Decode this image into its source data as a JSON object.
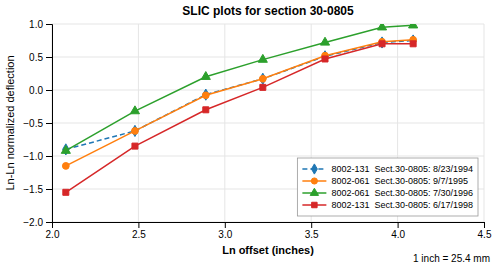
{
  "chart_data": {
    "type": "line",
    "title": "SLIC plots for section 30-0805",
    "x_label": "Ln offset (inches)",
    "y_label": "Ln-Ln normalized deflection",
    "annotations": [
      "1 inch = 25.4 mm"
    ],
    "x": [
      2.08,
      2.48,
      2.89,
      3.22,
      3.58,
      3.91,
      4.09
    ],
    "xlim": [
      2.0,
      4.5
    ],
    "ylim": [
      -2.0,
      1.0
    ],
    "xticks": [
      {
        "value": 2.0,
        "label": "2.0"
      },
      2.5,
      {
        "value": 3.0,
        "label": "3.0"
      },
      3.5,
      {
        "value": 4.0,
        "label": "4.0"
      },
      4.5
    ],
    "yticks": [
      {
        "value": -2.0,
        "label": "−2.0"
      },
      {
        "value": -1.5,
        "label": "−1.5"
      },
      {
        "value": -1.0,
        "label": "−1.0"
      },
      {
        "value": -0.5,
        "label": "−0.5"
      },
      {
        "value": 0.0,
        "label": "0.0"
      },
      0.5,
      {
        "value": 1.0,
        "label": "1.0"
      }
    ],
    "grid": true,
    "legend": "lower right",
    "series": [
      {
        "name": "8002-131  Sect.30-0805: 8/23/1994",
        "marker": "diamond",
        "line_style": "dashed",
        "values": [
          -0.9,
          -0.62,
          -0.07,
          0.17,
          0.51,
          0.72,
          0.75
        ]
      },
      {
        "name": "8002-061  Sect.30-0805: 9/7/1995",
        "marker": "circle",
        "line_style": "solid",
        "values": [
          -1.15,
          -0.62,
          -0.08,
          0.17,
          0.52,
          0.73,
          0.76
        ]
      },
      {
        "name": "8002-061  Sect.30-0805: 7/30/1996",
        "marker": "triangle",
        "line_style": "solid",
        "values": [
          -0.92,
          -0.32,
          0.2,
          0.46,
          0.72,
          0.95,
          0.98
        ]
      },
      {
        "name": "8002-131  Sect.30-0805: 6/17/1998",
        "marker": "square",
        "line_style": "solid",
        "values": [
          -1.55,
          -0.85,
          -0.3,
          0.04,
          0.47,
          0.7,
          0.7
        ]
      }
    ]
  }
}
